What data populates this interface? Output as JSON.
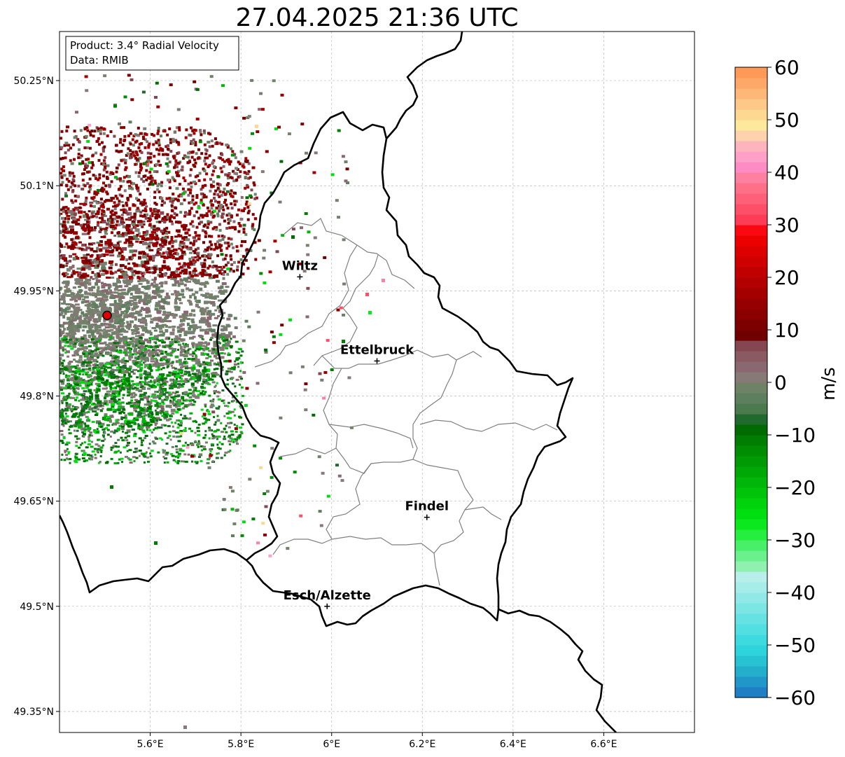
{
  "title": "27.04.2025 21:36 UTC",
  "info_box": {
    "product": "Product: 3.4° Radial Velocity",
    "data_source": "Data: RMIB"
  },
  "axes": {
    "lon_range": [
      5.4,
      6.8
    ],
    "lat_range": [
      49.32,
      50.32
    ],
    "lon_ticks": [
      {
        "value": 5.6,
        "label": "5.6°E"
      },
      {
        "value": 5.8,
        "label": "5.8°E"
      },
      {
        "value": 6.0,
        "label": "6°E"
      },
      {
        "value": 6.2,
        "label": "6.2°E"
      },
      {
        "value": 6.4,
        "label": "6.4°E"
      },
      {
        "value": 6.6,
        "label": "6.6°E"
      }
    ],
    "lat_ticks": [
      {
        "value": 49.35,
        "label": "49.35°N"
      },
      {
        "value": 49.5,
        "label": "49.5°N"
      },
      {
        "value": 49.65,
        "label": "49.65°N"
      },
      {
        "value": 49.8,
        "label": "49.8°N"
      },
      {
        "value": 49.95,
        "label": "49.95°N"
      },
      {
        "value": 50.1,
        "label": "50.1°N"
      },
      {
        "value": 50.25,
        "label": "50.25°N"
      }
    ],
    "grid": true
  },
  "radar_site": {
    "lon": 5.505,
    "lat": 49.915,
    "color": "#e00000"
  },
  "cities": [
    {
      "name": "Wiltz",
      "lon": 5.93,
      "lat": 49.97
    },
    {
      "name": "Ettelbruck",
      "lon": 6.1,
      "lat": 49.85
    },
    {
      "name": "Findel",
      "lon": 6.21,
      "lat": 49.627
    },
    {
      "name": "Esch/Alzette",
      "lon": 5.99,
      "lat": 49.5
    }
  ],
  "colorbar": {
    "label": "m/s",
    "range": [
      -60,
      60
    ],
    "ticks": [
      {
        "value": 60,
        "label": "60"
      },
      {
        "value": 50,
        "label": "50"
      },
      {
        "value": 40,
        "label": "40"
      },
      {
        "value": 30,
        "label": "30"
      },
      {
        "value": 20,
        "label": "20"
      },
      {
        "value": 10,
        "label": "10"
      },
      {
        "value": 0,
        "label": "0"
      },
      {
        "value": -10,
        "label": "−10"
      },
      {
        "value": -20,
        "label": "−20"
      },
      {
        "value": -30,
        "label": "−30"
      },
      {
        "value": -40,
        "label": "−40"
      },
      {
        "value": -50,
        "label": "−50"
      },
      {
        "value": -60,
        "label": "−60"
      }
    ],
    "bands": [
      {
        "from": -60,
        "to": -58,
        "color": "#1f7fc4"
      },
      {
        "from": -58,
        "to": -56,
        "color": "#2196c8"
      },
      {
        "from": -56,
        "to": -54,
        "color": "#23aecb"
      },
      {
        "from": -54,
        "to": -52,
        "color": "#27c3d2"
      },
      {
        "from": -52,
        "to": -50,
        "color": "#2ed4db"
      },
      {
        "from": -50,
        "to": -48,
        "color": "#3ddbdf"
      },
      {
        "from": -48,
        "to": -46,
        "color": "#52dfe1"
      },
      {
        "from": -46,
        "to": -44,
        "color": "#66e2e3"
      },
      {
        "from": -44,
        "to": -42,
        "color": "#7ce6e5"
      },
      {
        "from": -42,
        "to": -40,
        "color": "#90e9e7"
      },
      {
        "from": -40,
        "to": -38,
        "color": "#a6ede9"
      },
      {
        "from": -38,
        "to": -36,
        "color": "#b8efea"
      },
      {
        "from": -36,
        "to": -34,
        "color": "#8ff0b0"
      },
      {
        "from": -34,
        "to": -32,
        "color": "#6af08c"
      },
      {
        "from": -32,
        "to": -30,
        "color": "#48f06a"
      },
      {
        "from": -30,
        "to": -28,
        "color": "#25ee3f"
      },
      {
        "from": -28,
        "to": -26,
        "color": "#0ce81e"
      },
      {
        "from": -26,
        "to": -24,
        "color": "#00de10"
      },
      {
        "from": -24,
        "to": -22,
        "color": "#00d20c"
      },
      {
        "from": -22,
        "to": -20,
        "color": "#00c40a"
      },
      {
        "from": -20,
        "to": -18,
        "color": "#00b608"
      },
      {
        "from": -18,
        "to": -16,
        "color": "#00a806"
      },
      {
        "from": -16,
        "to": -14,
        "color": "#009a04"
      },
      {
        "from": -14,
        "to": -12,
        "color": "#008c03"
      },
      {
        "from": -12,
        "to": -10,
        "color": "#007e02"
      },
      {
        "from": -10,
        "to": -8,
        "color": "#006b01"
      },
      {
        "from": -8,
        "to": -6,
        "color": "#1f6a2c"
      },
      {
        "from": -6,
        "to": -4,
        "color": "#4a7a4e"
      },
      {
        "from": -4,
        "to": -2,
        "color": "#5d7f5e"
      },
      {
        "from": -2,
        "to": 0,
        "color": "#6e8265"
      },
      {
        "from": 0,
        "to": 2,
        "color": "#877a76"
      },
      {
        "from": 2,
        "to": 4,
        "color": "#8a6872"
      },
      {
        "from": 4,
        "to": 6,
        "color": "#8a5a62"
      },
      {
        "from": 6,
        "to": 8,
        "color": "#844650"
      },
      {
        "from": 8,
        "to": 10,
        "color": "#700000"
      },
      {
        "from": 10,
        "to": 12,
        "color": "#7d0000"
      },
      {
        "from": 12,
        "to": 14,
        "color": "#8a0000"
      },
      {
        "from": 14,
        "to": 16,
        "color": "#970000"
      },
      {
        "from": 16,
        "to": 18,
        "color": "#a40000"
      },
      {
        "from": 18,
        "to": 20,
        "color": "#b20000"
      },
      {
        "from": 20,
        "to": 22,
        "color": "#c00000"
      },
      {
        "from": 22,
        "to": 24,
        "color": "#cf0000"
      },
      {
        "from": 24,
        "to": 26,
        "color": "#dd0000"
      },
      {
        "from": 26,
        "to": 28,
        "color": "#ec0000"
      },
      {
        "from": 28,
        "to": 30,
        "color": "#fa0a10"
      },
      {
        "from": 30,
        "to": 32,
        "color": "#fc3d55"
      },
      {
        "from": 32,
        "to": 34,
        "color": "#fd5068"
      },
      {
        "from": 34,
        "to": 36,
        "color": "#fd6078"
      },
      {
        "from": 36,
        "to": 38,
        "color": "#fd7088"
      },
      {
        "from": 38,
        "to": 40,
        "color": "#fd80a0"
      },
      {
        "from": 40,
        "to": 42,
        "color": "#fe8cc4"
      },
      {
        "from": 42,
        "to": 44,
        "color": "#fea0c8"
      },
      {
        "from": 44,
        "to": 46,
        "color": "#fdb4bc"
      },
      {
        "from": 46,
        "to": 48,
        "color": "#fdd2ac"
      },
      {
        "from": 48,
        "to": 50,
        "color": "#fde89c"
      },
      {
        "from": 50,
        "to": 52,
        "color": "#fdd890"
      },
      {
        "from": 52,
        "to": 54,
        "color": "#fdc888"
      },
      {
        "from": 54,
        "to": 56,
        "color": "#fdb878"
      },
      {
        "from": 56,
        "to": 58,
        "color": "#fda868"
      },
      {
        "from": 58,
        "to": 60,
        "color": "#fd9a58"
      }
    ]
  }
}
